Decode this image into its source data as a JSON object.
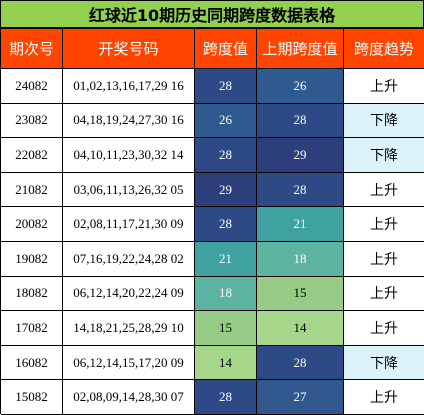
{
  "title": "红球近10期历史同期跨度数据表格",
  "headers": [
    "期次号",
    "开奖号码",
    "跨度值",
    "上期跨度值",
    "跨度趋势"
  ],
  "colors": {
    "title_bg": "#92d050",
    "header_bg": "#ff4500",
    "span_29": "#2d3f7a",
    "span_28": "#2e4a86",
    "span_27": "#31578f",
    "span_26": "#2f5a90",
    "span_21": "#3fa1a0",
    "span_18": "#5bb3a0",
    "span_15": "#97cc87",
    "span_14": "#a6d68a",
    "trend_down_bg": "#ddf3fb"
  },
  "rows": [
    {
      "issue": "24082",
      "numbers": "01,02,13,16,17,29 16",
      "span": "28",
      "prev_span": "26",
      "trend": "上升"
    },
    {
      "issue": "23082",
      "numbers": "04,18,19,24,27,30 16",
      "span": "26",
      "prev_span": "28",
      "trend": "下降"
    },
    {
      "issue": "22082",
      "numbers": "04,10,11,23,30,32 14",
      "span": "28",
      "prev_span": "29",
      "trend": "下降"
    },
    {
      "issue": "21082",
      "numbers": "03,06,11,13,26,32 05",
      "span": "29",
      "prev_span": "28",
      "trend": "上升"
    },
    {
      "issue": "20082",
      "numbers": "02,08,11,17,21,30 09",
      "span": "28",
      "prev_span": "21",
      "trend": "上升"
    },
    {
      "issue": "19082",
      "numbers": "07,16,19,22,24,28 02",
      "span": "21",
      "prev_span": "18",
      "trend": "上升"
    },
    {
      "issue": "18082",
      "numbers": "06,12,14,20,22,24 09",
      "span": "18",
      "prev_span": "15",
      "trend": "上升"
    },
    {
      "issue": "17082",
      "numbers": "14,18,21,25,28,29 10",
      "span": "15",
      "prev_span": "14",
      "trend": "上升"
    },
    {
      "issue": "16082",
      "numbers": "06,12,14,15,17,20 09",
      "span": "14",
      "prev_span": "28",
      "trend": "下降"
    },
    {
      "issue": "15082",
      "numbers": "02,08,09,14,28,30 07",
      "span": "28",
      "prev_span": "27",
      "trend": "上升"
    }
  ]
}
